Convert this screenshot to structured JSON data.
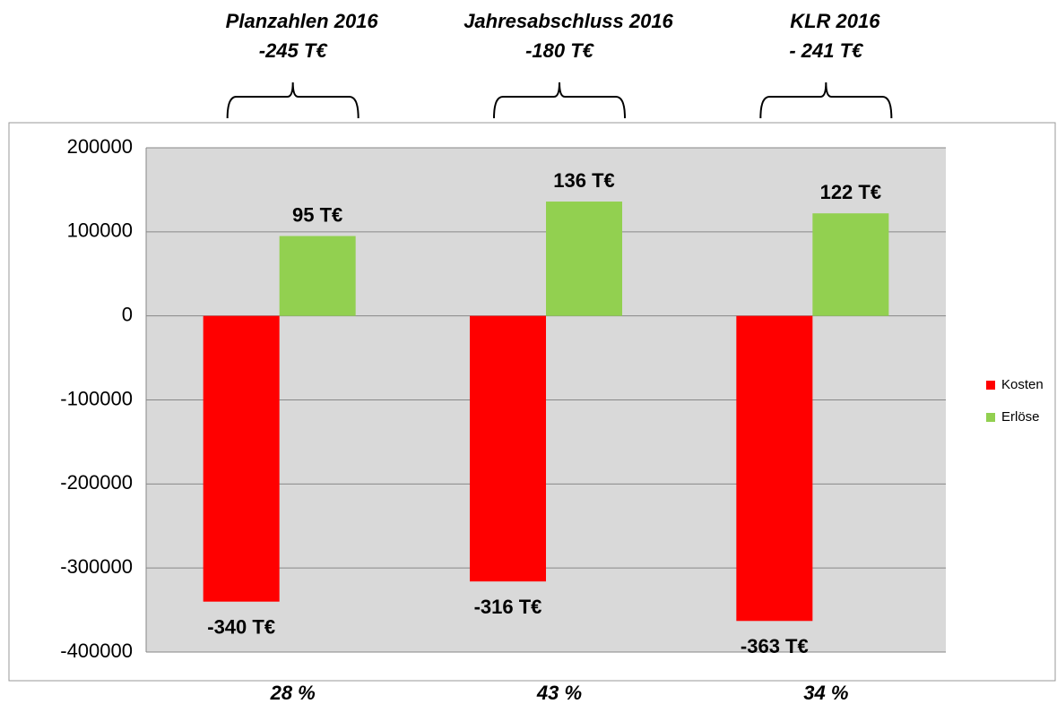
{
  "chart_data": {
    "type": "bar",
    "categories": [
      "Planzahlen 2016",
      "Jahresabschluss 2016",
      "KLR 2016"
    ],
    "group_totals": [
      "-245 T€",
      "-180 T€",
      "- 241 T€"
    ],
    "group_shares": [
      "28 %",
      "43 %",
      "34 %"
    ],
    "series": [
      {
        "name": "Kosten",
        "color": "#ff0000",
        "values": [
          -340000,
          -316000,
          -363000
        ],
        "value_labels": [
          "-340 T€",
          "-316 T€",
          "-363 T€"
        ]
      },
      {
        "name": "Erlöse",
        "color": "#92d050",
        "values": [
          95000,
          136000,
          122000
        ],
        "value_labels": [
          "95 T€",
          "136 T€",
          "122 T€"
        ]
      }
    ],
    "ylim": [
      -400000,
      200000
    ],
    "yticks": [
      -400000,
      -300000,
      -200000,
      -100000,
      0,
      100000,
      200000
    ],
    "grid": true,
    "legend": "right",
    "plot_background": "#d9d9d9"
  }
}
